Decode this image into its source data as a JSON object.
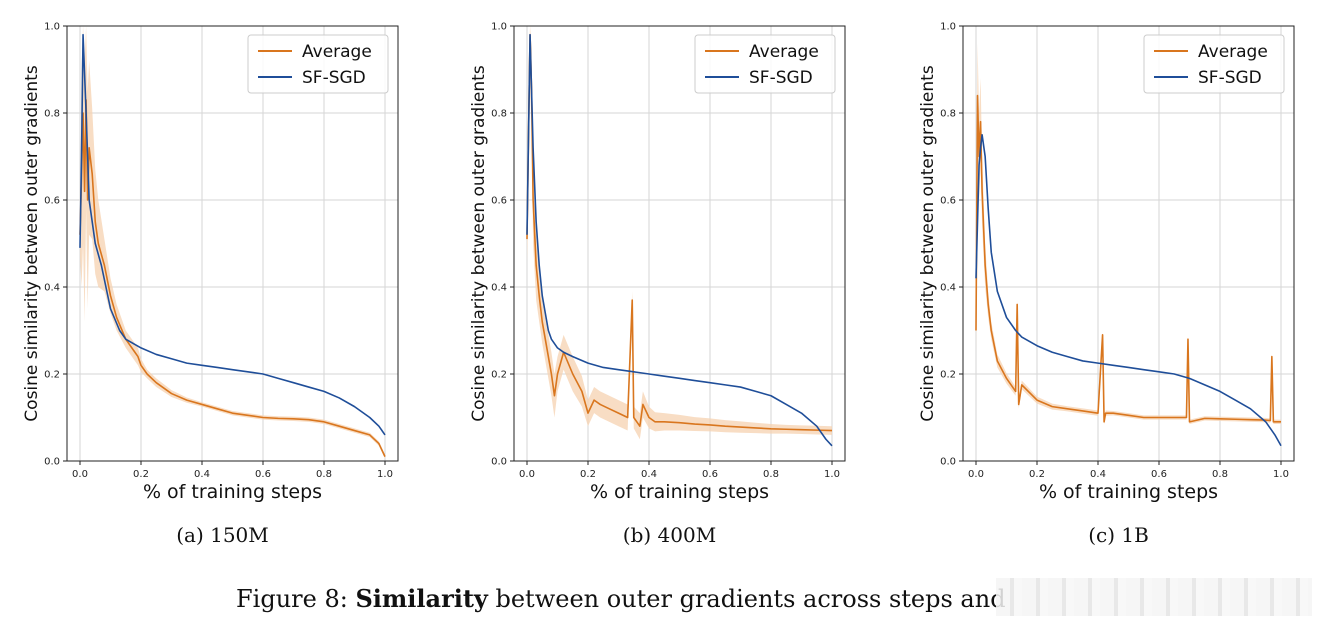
{
  "colors": {
    "average": "#d9761e",
    "sfsgd": "#1f4e99",
    "band": "#f6d2b0",
    "grid": "#d6d6d6"
  },
  "figure_caption": {
    "prefix": "Figure 8: ",
    "bold": "Similarity",
    "rest": " between outer gradients across steps and"
  },
  "chart_data": [
    {
      "type": "line",
      "caption": "(a)  150M",
      "xlabel": "% of training steps",
      "ylabel": "Cosine similarity between outer gradients",
      "xlim": [
        0,
        1
      ],
      "ylim": [
        0,
        1
      ],
      "xticks": [
        "0.0",
        "0.2",
        "0.4",
        "0.6",
        "0.8",
        "1.0"
      ],
      "yticks": [
        "0.0",
        "0.2",
        "0.4",
        "0.6",
        "0.8",
        "1.0"
      ],
      "grid": true,
      "legend": "top-right",
      "series": [
        {
          "name": "Average",
          "x": [
            0.0,
            0.005,
            0.01,
            0.015,
            0.02,
            0.025,
            0.03,
            0.04,
            0.05,
            0.06,
            0.08,
            0.1,
            0.12,
            0.15,
            0.18,
            0.19,
            0.2,
            0.22,
            0.25,
            0.3,
            0.35,
            0.4,
            0.45,
            0.5,
            0.55,
            0.6,
            0.65,
            0.7,
            0.75,
            0.8,
            0.85,
            0.9,
            0.95,
            0.98,
            1.0
          ],
          "y": [
            0.52,
            0.65,
            0.8,
            0.62,
            0.83,
            0.6,
            0.72,
            0.66,
            0.55,
            0.5,
            0.45,
            0.38,
            0.33,
            0.28,
            0.25,
            0.24,
            0.22,
            0.2,
            0.18,
            0.155,
            0.14,
            0.13,
            0.12,
            0.11,
            0.105,
            0.1,
            0.098,
            0.097,
            0.095,
            0.09,
            0.08,
            0.07,
            0.06,
            0.04,
            0.01
          ],
          "band_halfwidth": [
            0.05,
            0.25,
            0.3,
            0.3,
            0.25,
            0.25,
            0.2,
            0.15,
            0.12,
            0.1,
            0.06,
            0.04,
            0.03,
            0.02,
            0.02,
            0.02,
            0.015,
            0.01,
            0.01,
            0.008,
            0.006,
            0.005,
            0.005,
            0.005,
            0.005,
            0.005,
            0.005,
            0.005,
            0.005,
            0.005,
            0.005,
            0.005,
            0.005,
            0.005,
            0.005
          ]
        },
        {
          "name": "SF-SGD",
          "x": [
            0.0,
            0.005,
            0.01,
            0.02,
            0.03,
            0.05,
            0.07,
            0.1,
            0.13,
            0.15,
            0.2,
            0.25,
            0.3,
            0.35,
            0.4,
            0.45,
            0.5,
            0.55,
            0.6,
            0.65,
            0.7,
            0.75,
            0.8,
            0.85,
            0.9,
            0.95,
            0.98,
            1.0
          ],
          "y": [
            0.49,
            0.7,
            0.98,
            0.8,
            0.6,
            0.5,
            0.45,
            0.35,
            0.3,
            0.28,
            0.26,
            0.245,
            0.235,
            0.225,
            0.22,
            0.215,
            0.21,
            0.205,
            0.2,
            0.19,
            0.18,
            0.17,
            0.16,
            0.145,
            0.125,
            0.1,
            0.08,
            0.06
          ]
        }
      ]
    },
    {
      "type": "line",
      "caption": "(b)  400M",
      "xlabel": "% of training steps",
      "ylabel": "Cosine similarity between outer gradients",
      "xlim": [
        0,
        1
      ],
      "ylim": [
        0,
        1
      ],
      "xticks": [
        "0.0",
        "0.2",
        "0.4",
        "0.6",
        "0.8",
        "1.0"
      ],
      "yticks": [
        "0.0",
        "0.2",
        "0.4",
        "0.6",
        "0.8",
        "1.0"
      ],
      "grid": true,
      "legend": "top-right",
      "series": [
        {
          "name": "Average",
          "x": [
            0.0,
            0.005,
            0.01,
            0.015,
            0.02,
            0.03,
            0.04,
            0.05,
            0.06,
            0.08,
            0.09,
            0.1,
            0.12,
            0.15,
            0.18,
            0.2,
            0.22,
            0.24,
            0.27,
            0.3,
            0.33,
            0.345,
            0.35,
            0.37,
            0.38,
            0.4,
            0.42,
            0.45,
            0.5,
            0.55,
            0.6,
            0.65,
            0.7,
            0.75,
            0.8,
            0.85,
            0.9,
            0.95,
            1.0
          ],
          "y": [
            0.51,
            0.75,
            0.98,
            0.85,
            0.6,
            0.45,
            0.38,
            0.32,
            0.28,
            0.2,
            0.15,
            0.2,
            0.25,
            0.2,
            0.16,
            0.11,
            0.14,
            0.13,
            0.12,
            0.11,
            0.1,
            0.37,
            0.1,
            0.08,
            0.13,
            0.1,
            0.09,
            0.09,
            0.088,
            0.085,
            0.083,
            0.08,
            0.078,
            0.076,
            0.074,
            0.073,
            0.072,
            0.071,
            0.07
          ],
          "band_halfwidth": [
            0.05,
            0.15,
            0.1,
            0.1,
            0.1,
            0.08,
            0.06,
            0.05,
            0.05,
            0.05,
            0.05,
            0.04,
            0.04,
            0.04,
            0.035,
            0.03,
            0.03,
            0.03,
            0.03,
            0.03,
            0.03,
            0.02,
            0.025,
            0.03,
            0.03,
            0.025,
            0.022,
            0.02,
            0.018,
            0.016,
            0.015,
            0.014,
            0.013,
            0.012,
            0.011,
            0.01,
            0.01,
            0.01,
            0.01
          ]
        },
        {
          "name": "SF-SGD",
          "x": [
            0.0,
            0.005,
            0.01,
            0.02,
            0.03,
            0.04,
            0.05,
            0.06,
            0.07,
            0.08,
            0.1,
            0.12,
            0.15,
            0.2,
            0.25,
            0.3,
            0.35,
            0.4,
            0.45,
            0.5,
            0.55,
            0.6,
            0.65,
            0.7,
            0.75,
            0.8,
            0.85,
            0.9,
            0.95,
            0.98,
            1.0
          ],
          "y": [
            0.52,
            0.75,
            0.98,
            0.72,
            0.55,
            0.45,
            0.38,
            0.34,
            0.3,
            0.28,
            0.26,
            0.25,
            0.24,
            0.225,
            0.215,
            0.21,
            0.205,
            0.2,
            0.195,
            0.19,
            0.185,
            0.18,
            0.175,
            0.17,
            0.16,
            0.15,
            0.13,
            0.11,
            0.08,
            0.05,
            0.035
          ]
        }
      ]
    },
    {
      "type": "line",
      "caption": "(c)  1B",
      "xlabel": "% of training steps",
      "ylabel": "Cosine similarity between outer gradients",
      "xlim": [
        0,
        1
      ],
      "ylim": [
        0,
        1
      ],
      "xticks": [
        "0.0",
        "0.2",
        "0.4",
        "0.6",
        "0.8",
        "1.0"
      ],
      "yticks": [
        "0.0",
        "0.2",
        "0.4",
        "0.6",
        "0.8",
        "1.0"
      ],
      "grid": true,
      "legend": "top-right",
      "series": [
        {
          "name": "Average",
          "x": [
            0.0,
            0.005,
            0.01,
            0.015,
            0.02,
            0.03,
            0.04,
            0.05,
            0.07,
            0.1,
            0.13,
            0.135,
            0.14,
            0.15,
            0.2,
            0.25,
            0.3,
            0.35,
            0.4,
            0.415,
            0.42,
            0.425,
            0.45,
            0.5,
            0.55,
            0.6,
            0.65,
            0.69,
            0.695,
            0.7,
            0.75,
            0.8,
            0.85,
            0.9,
            0.95,
            0.965,
            0.97,
            0.975,
            1.0
          ],
          "y": [
            0.3,
            0.84,
            0.7,
            0.78,
            0.62,
            0.45,
            0.36,
            0.3,
            0.23,
            0.19,
            0.16,
            0.36,
            0.13,
            0.175,
            0.14,
            0.125,
            0.12,
            0.115,
            0.11,
            0.29,
            0.09,
            0.11,
            0.11,
            0.105,
            0.1,
            0.1,
            0.1,
            0.1,
            0.28,
            0.09,
            0.098,
            0.097,
            0.096,
            0.095,
            0.094,
            0.093,
            0.24,
            0.09,
            0.09
          ],
          "band_halfwidth": [
            0.05,
            0.12,
            0.1,
            0.1,
            0.08,
            0.05,
            0.03,
            0.02,
            0.015,
            0.012,
            0.01,
            0.01,
            0.01,
            0.01,
            0.008,
            0.007,
            0.006,
            0.006,
            0.006,
            0.006,
            0.006,
            0.006,
            0.005,
            0.005,
            0.005,
            0.005,
            0.005,
            0.005,
            0.005,
            0.005,
            0.005,
            0.005,
            0.005,
            0.005,
            0.005,
            0.005,
            0.005,
            0.005,
            0.005
          ]
        },
        {
          "name": "SF-SGD",
          "x": [
            0.0,
            0.005,
            0.01,
            0.015,
            0.02,
            0.03,
            0.04,
            0.05,
            0.07,
            0.1,
            0.13,
            0.15,
            0.2,
            0.25,
            0.3,
            0.35,
            0.4,
            0.45,
            0.5,
            0.55,
            0.6,
            0.65,
            0.7,
            0.75,
            0.8,
            0.85,
            0.9,
            0.95,
            0.98,
            1.0
          ],
          "y": [
            0.42,
            0.55,
            0.68,
            0.72,
            0.75,
            0.7,
            0.58,
            0.48,
            0.39,
            0.33,
            0.3,
            0.285,
            0.265,
            0.25,
            0.24,
            0.23,
            0.225,
            0.22,
            0.215,
            0.21,
            0.205,
            0.2,
            0.19,
            0.175,
            0.16,
            0.14,
            0.12,
            0.09,
            0.06,
            0.035
          ]
        }
      ]
    }
  ]
}
